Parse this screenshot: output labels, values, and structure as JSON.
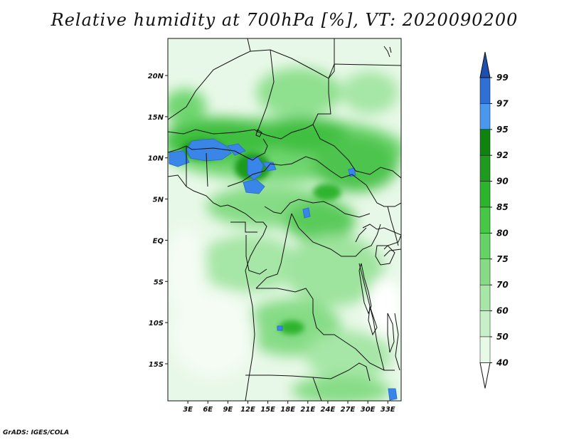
{
  "title": "Relative humidity at 700hPa [%], VT: 2020090200",
  "credit": "GrADS: IGES/COLA",
  "map": {
    "lat_ticks": [
      "20N",
      "15N",
      "10N",
      "5N",
      "EQ",
      "5S",
      "10S",
      "15S"
    ],
    "lon_ticks": [
      "3E",
      "6E",
      "9E",
      "12E",
      "15E",
      "18E",
      "21E",
      "24E",
      "27E",
      "30E",
      "33E"
    ],
    "lat_values": [
      20,
      15,
      10,
      5,
      0,
      -5,
      -10,
      -15
    ],
    "lon_values": [
      3,
      6,
      9,
      12,
      15,
      18,
      21,
      24,
      27,
      30,
      33
    ],
    "lon_range": [
      0,
      35
    ],
    "lat_range": [
      -19.5,
      24.5
    ]
  },
  "colorbar": {
    "levels": [
      "40",
      "50",
      "60",
      "70",
      "75",
      "80",
      "85",
      "90",
      "92",
      "95",
      "97",
      "99"
    ],
    "colors": [
      "#ffffff",
      "#e6fae6",
      "#c8f0c8",
      "#a6e6a6",
      "#86dc86",
      "#64d264",
      "#46c846",
      "#2db42d",
      "#1e9b1e",
      "#0f820f",
      "#4a98ee",
      "#2f6fd6",
      "#1c4fb0"
    ]
  }
}
